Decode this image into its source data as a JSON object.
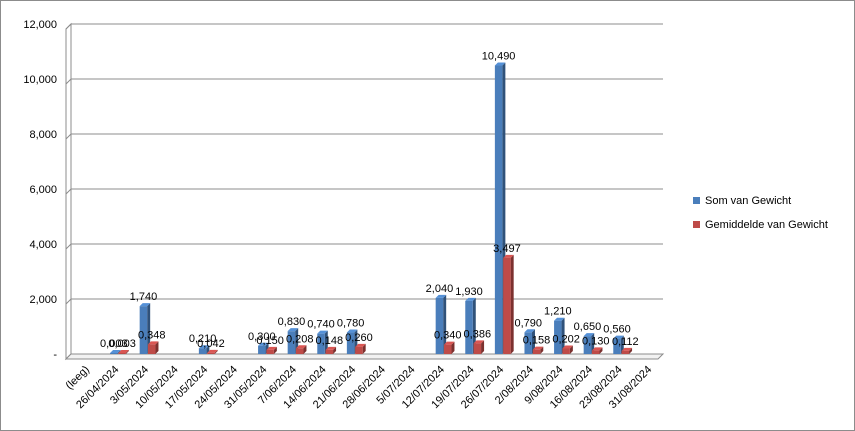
{
  "chart_data": {
    "type": "bar",
    "title": "",
    "xlabel": "",
    "ylabel": "",
    "ylim": [
      0,
      12000
    ],
    "y_ticks": [
      "-",
      "2,000",
      "4,000",
      "6,000",
      "8,000",
      "10,000",
      "12,000"
    ],
    "grid": true,
    "legend_position": "right",
    "categories": [
      "(leeg)",
      "26/04/2024",
      "3/05/2024",
      "10/05/2024",
      "17/05/2024",
      "24/05/2024",
      "31/05/2024",
      "7/06/2024",
      "14/06/2024",
      "21/06/2024",
      "28/06/2024",
      "5/07/2024",
      "12/07/2024",
      "19/07/2024",
      "26/07/2024",
      "2/08/2024",
      "9/08/2024",
      "16/08/2024",
      "23/08/2024",
      "31/08/2024"
    ],
    "series": [
      {
        "name": "Som van Gewicht",
        "color": "#4a7ebb",
        "values": [
          null,
          3,
          1740,
          null,
          210,
          null,
          300,
          830,
          740,
          780,
          null,
          null,
          2040,
          1930,
          10490,
          790,
          1210,
          650,
          560,
          null
        ],
        "labels": [
          "",
          "0,003",
          "1,740",
          "",
          "0,210",
          "",
          "0,300",
          "0,830",
          "0,740",
          "0,780",
          "",
          "",
          "2,040",
          "1,930",
          "10,490",
          "0,790",
          "1,210",
          "0,650",
          "0,560",
          ""
        ]
      },
      {
        "name": "Gemiddelde van Gewicht",
        "color": "#be4b48",
        "values": [
          null,
          3,
          348,
          null,
          42,
          null,
          150,
          208,
          148,
          260,
          null,
          null,
          340,
          386,
          3497,
          158,
          202,
          130,
          112,
          null
        ],
        "labels": [
          "",
          "0,003",
          "0,348",
          "",
          "0,042",
          "",
          "0,150",
          "0,208",
          "0,148",
          "0,260",
          "",
          "",
          "0,340",
          "0,386",
          "3,497",
          "0,158",
          "0,202",
          "0,130",
          "0,112",
          ""
        ]
      }
    ]
  }
}
